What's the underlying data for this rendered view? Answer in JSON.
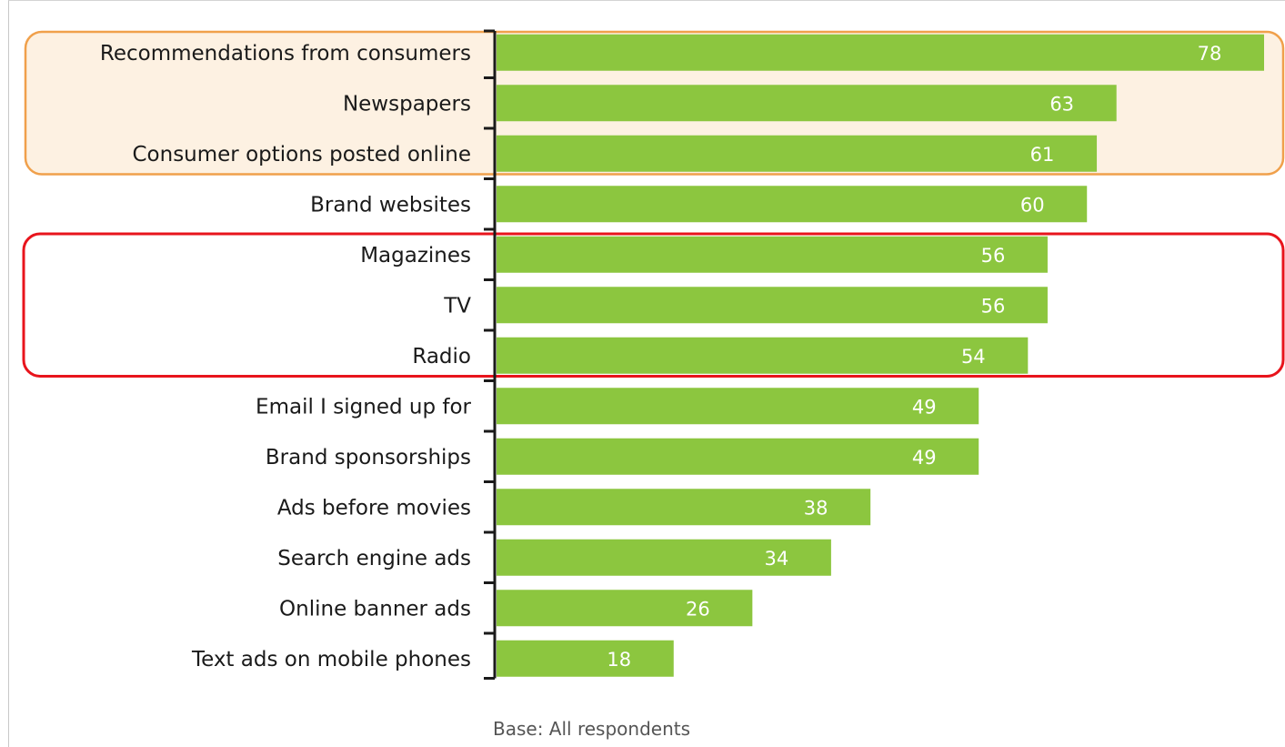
{
  "chart_data": {
    "type": "bar",
    "orientation": "horizontal",
    "categories": [
      "Recommendations from consumers",
      "Newspapers",
      "Consumer options posted online",
      "Brand websites",
      "Magazines",
      "TV",
      "Radio",
      "Email I signed up for",
      "Brand sponsorships",
      "Ads before movies",
      "Search engine ads",
      "Online banner ads",
      "Text ads on mobile phones"
    ],
    "values": [
      78,
      63,
      61,
      60,
      56,
      56,
      54,
      49,
      49,
      38,
      34,
      26,
      18
    ],
    "xlim": [
      0,
      78
    ],
    "grid": false,
    "legend": "none",
    "bar_color": "#8cc63f",
    "value_label_color": "#ffffff",
    "highlight_groups": [
      {
        "color": "#f0a04b",
        "fill": "#fdf1e2",
        "from": 0,
        "to": 2
      },
      {
        "color": "#e8141c",
        "fill": "none",
        "from": 4,
        "to": 6
      }
    ],
    "footnote": "Base:  All respondents"
  }
}
